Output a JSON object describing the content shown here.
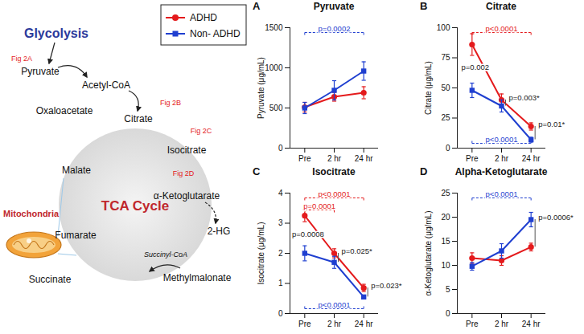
{
  "diagram": {
    "glycolysis": "Glycolysis",
    "pyruvate": "Pyruvate",
    "acetyl_coa": "Acetyl-CoA",
    "citrate": "Citrate",
    "oxaloacetate": "Oxaloacetate",
    "isocitrate": "Isocitrate",
    "alpha_kg": "α-Ketoglutarate",
    "two_hg": "2-HG",
    "malate": "Malate",
    "fumarate": "Fumarate",
    "succinate": "Succinate",
    "succinyl_coa": "Succinyl-CoA",
    "methylmalonate": "Methylmalonate",
    "tca": "TCA Cycle",
    "mitochondria": "Mitochondria",
    "fig_refs": {
      "pyruvate": "Fig 2A",
      "citrate": "Fig 2B",
      "isocitrate": "Fig 2C",
      "alpha_kg": "Fig 2D"
    }
  },
  "chart_data": [
    {
      "type": "line",
      "panel": "A",
      "title": "Pyruvate",
      "y_label": "Pyruvate (μg/mL)",
      "categories": [
        "Pre",
        "2 hr",
        "24 hr"
      ],
      "ylim": [
        0,
        1500
      ],
      "yticks": [
        0,
        500,
        1000,
        1500
      ],
      "series": [
        {
          "name": "ADHD",
          "color": "#e41a1c",
          "marker": "circle",
          "values": [
            510,
            640,
            690
          ],
          "errors": [
            60,
            55,
            75
          ]
        },
        {
          "name": "Non- ADHD",
          "color": "#1f3fd0",
          "marker": "square",
          "values": [
            500,
            720,
            960
          ],
          "errors": [
            70,
            120,
            115
          ]
        }
      ],
      "brackets": [
        {
          "text": "p=0.0002",
          "series": "Non- ADHD",
          "from": "Pre",
          "to": "24 hr",
          "side": "top"
        }
      ],
      "pair_labels": []
    },
    {
      "type": "line",
      "panel": "B",
      "title": "Citrate",
      "y_label": "Citrate (μg/mL)",
      "categories": [
        "Pre",
        "2 hr",
        "24 hr"
      ],
      "ylim": [
        0,
        100
      ],
      "yticks": [
        0,
        25,
        50,
        75,
        100
      ],
      "series": [
        {
          "name": "ADHD",
          "color": "#e41a1c",
          "marker": "circle",
          "values": [
            86,
            40,
            18
          ],
          "errors": [
            9,
            5,
            3
          ]
        },
        {
          "name": "Non- ADHD",
          "color": "#1f3fd0",
          "marker": "square",
          "values": [
            48,
            35,
            7
          ],
          "errors": [
            6,
            5,
            2
          ]
        }
      ],
      "brackets": [
        {
          "text": "p<0.0001",
          "series": "ADHD",
          "from": "Pre",
          "to": "24 hr",
          "side": "top"
        },
        {
          "text": "p<0.0001",
          "series": "Non- ADHD",
          "from": "Pre",
          "to": "24 hr",
          "side": "bottom"
        }
      ],
      "pair_labels": [
        {
          "text": "p=0.002",
          "at": "Pre"
        },
        {
          "text": "p=0.003*",
          "at": "2 hr"
        },
        {
          "text": "p=0.01*",
          "at": "24 hr"
        }
      ]
    },
    {
      "type": "line",
      "panel": "C",
      "title": "Isocitrate",
      "y_label": "Isocitrate (μg/mL)",
      "categories": [
        "Pre",
        "2 hr",
        "24 hr"
      ],
      "ylim": [
        0,
        4
      ],
      "yticks": [
        0,
        1,
        2,
        3,
        4
      ],
      "series": [
        {
          "name": "ADHD",
          "color": "#e41a1c",
          "marker": "circle",
          "values": [
            3.25,
            2.0,
            0.85
          ],
          "errors": [
            0.2,
            0.15,
            0.12
          ]
        },
        {
          "name": "Non- ADHD",
          "color": "#1f3fd0",
          "marker": "square",
          "values": [
            2.0,
            1.7,
            0.55
          ],
          "errors": [
            0.25,
            0.2,
            0.05
          ]
        }
      ],
      "brackets": [
        {
          "text": "p<0.0001",
          "series": "ADHD",
          "from": "Pre",
          "to": "24 hr",
          "side": "top"
        },
        {
          "text": "p=0.0001",
          "series": "ADHD",
          "from": "Pre",
          "to": "2 hr",
          "side": "top"
        },
        {
          "text": "p<0.0001",
          "series": "Non- ADHD",
          "from": "Pre",
          "to": "24 hr",
          "side": "bottom"
        }
      ],
      "pair_labels": [
        {
          "text": "p=0.0008",
          "at": "Pre"
        },
        {
          "text": "p=0.025*",
          "at": "2 hr"
        },
        {
          "text": "p=0.023*",
          "at": "24 hr"
        }
      ]
    },
    {
      "type": "line",
      "panel": "D",
      "title": "Alpha-Ketoglutarate",
      "y_label": "α-Ketoglutarate (μg/mL)",
      "categories": [
        "Pre",
        "2 hr",
        "24 hr"
      ],
      "ylim": [
        0,
        25
      ],
      "yticks": [
        0,
        5,
        10,
        15,
        20,
        25
      ],
      "series": [
        {
          "name": "ADHD",
          "color": "#e41a1c",
          "marker": "circle",
          "values": [
            11.5,
            11,
            13.8
          ],
          "errors": [
            1.1,
            1,
            0.8
          ]
        },
        {
          "name": "Non- ADHD",
          "color": "#1f3fd0",
          "marker": "square",
          "values": [
            9.8,
            13,
            19.5
          ],
          "errors": [
            0.8,
            1.5,
            1.5
          ]
        }
      ],
      "brackets": [
        {
          "text": "p<0.0001",
          "series": "Non- ADHD",
          "from": "Pre",
          "to": "24 hr",
          "side": "top"
        }
      ],
      "pair_labels": [
        {
          "text": "p=0.0006*",
          "at": "24 hr"
        }
      ]
    }
  ]
}
